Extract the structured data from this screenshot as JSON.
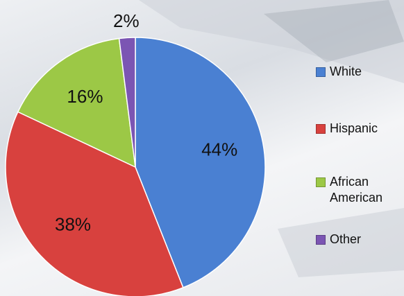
{
  "chart_data": {
    "type": "pie",
    "categories": [
      "White",
      "Hispanic",
      "African American",
      "Other"
    ],
    "values": [
      44,
      38,
      16,
      2
    ],
    "value_labels": [
      "44%",
      "38%",
      "16%",
      "2%"
    ],
    "colors": [
      "#4a80d2",
      "#d8413e",
      "#9cc846",
      "#7b55b3"
    ],
    "legend": "right"
  }
}
